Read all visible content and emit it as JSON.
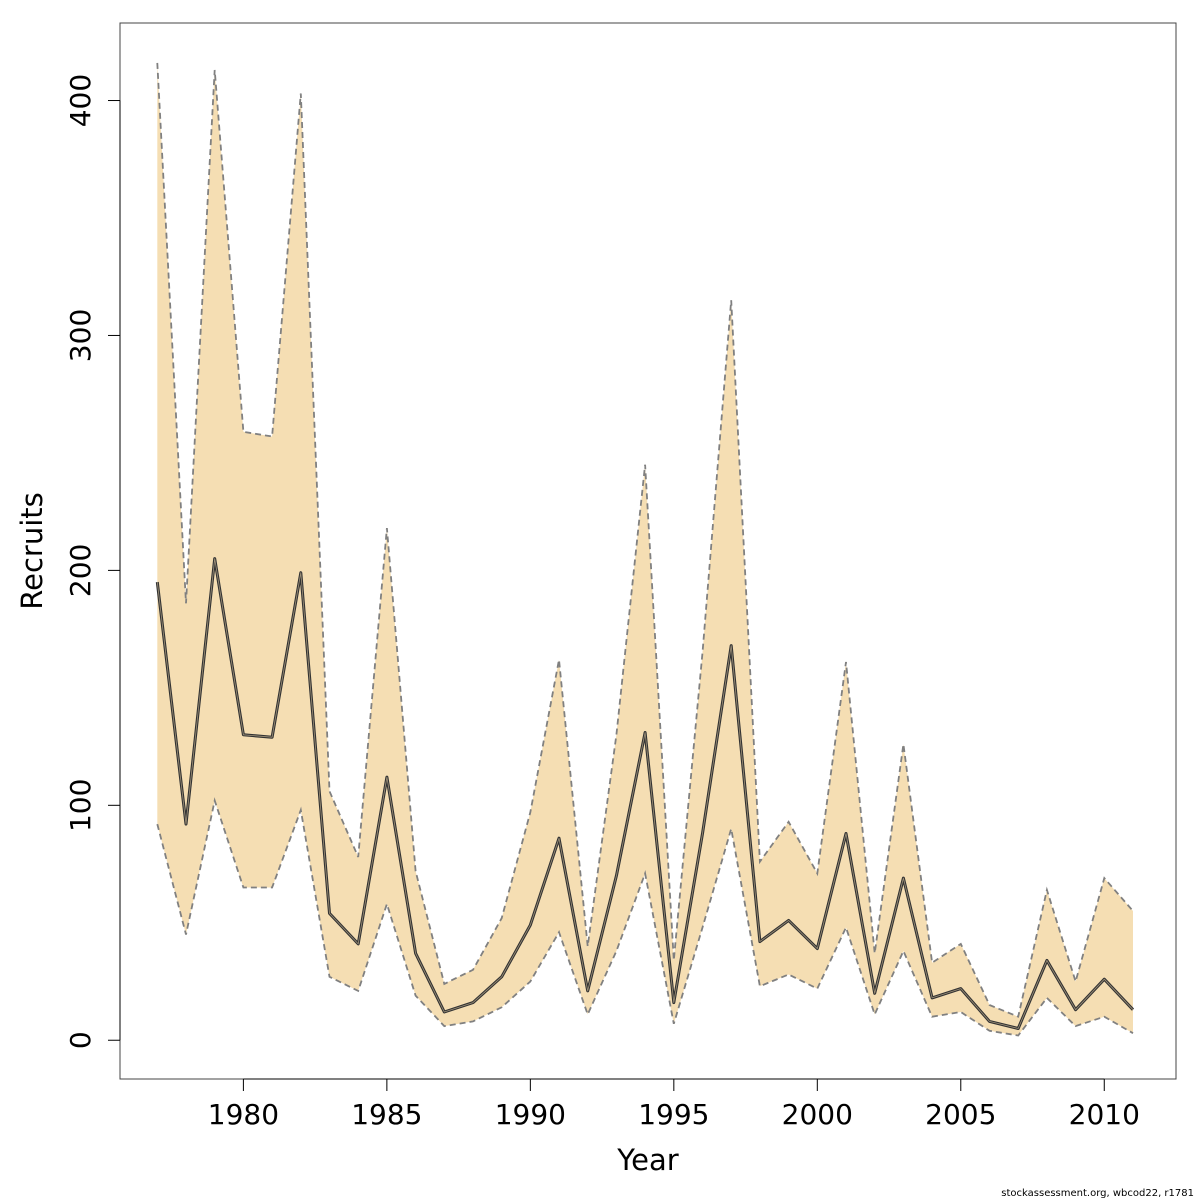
{
  "chart_data": {
    "type": "area",
    "xlabel": "Year",
    "ylabel": "Recruits",
    "xlim": [
      1975.7,
      2012.5
    ],
    "ylim": [
      -16.5,
      433
    ],
    "x_ticks": [
      1980,
      1985,
      1990,
      1995,
      2000,
      2005,
      2010
    ],
    "y_ticks": [
      0,
      100,
      200,
      300,
      400
    ],
    "x": [
      1977,
      1978,
      1979,
      1980,
      1981,
      1982,
      1983,
      1984,
      1985,
      1986,
      1987,
      1988,
      1989,
      1990,
      1991,
      1992,
      1993,
      1994,
      1995,
      1996,
      1997,
      1998,
      1999,
      2000,
      2001,
      2002,
      2003,
      2004,
      2005,
      2006,
      2007,
      2008,
      2009,
      2010,
      2011
    ],
    "series": [
      {
        "role": "estimate",
        "values": [
          195,
          92,
          205,
          130,
          129,
          199,
          54,
          41,
          112,
          37,
          12,
          16,
          27,
          49,
          86,
          21,
          70,
          131,
          16,
          88,
          168,
          42,
          51,
          39,
          88,
          20,
          69,
          18,
          22,
          8,
          5,
          34,
          13,
          26,
          13
        ]
      },
      {
        "role": "upper",
        "values": [
          416,
          186,
          413,
          259,
          257,
          403,
          106,
          78,
          218,
          72,
          24,
          30,
          52,
          97,
          162,
          40,
          130,
          245,
          34,
          165,
          315,
          76,
          93,
          71,
          161,
          37,
          126,
          33,
          41,
          15,
          10,
          64,
          25,
          69,
          55
        ]
      },
      {
        "role": "lower",
        "values": [
          92,
          45,
          102,
          65,
          65,
          98,
          27,
          21,
          58,
          19,
          6,
          8,
          14,
          25,
          46,
          11,
          38,
          71,
          7,
          48,
          90,
          23,
          28,
          22,
          48,
          11,
          38,
          10,
          12,
          4,
          2,
          18,
          6,
          10,
          3
        ]
      }
    ],
    "colors": {
      "band_fill": "#F5DEB3",
      "band_edge": "#808080",
      "estimate_line": "#333333",
      "axis": "#000000"
    },
    "grid": false,
    "legend": "none"
  },
  "credit": "stockassessment.org, wbcod22, r1781"
}
